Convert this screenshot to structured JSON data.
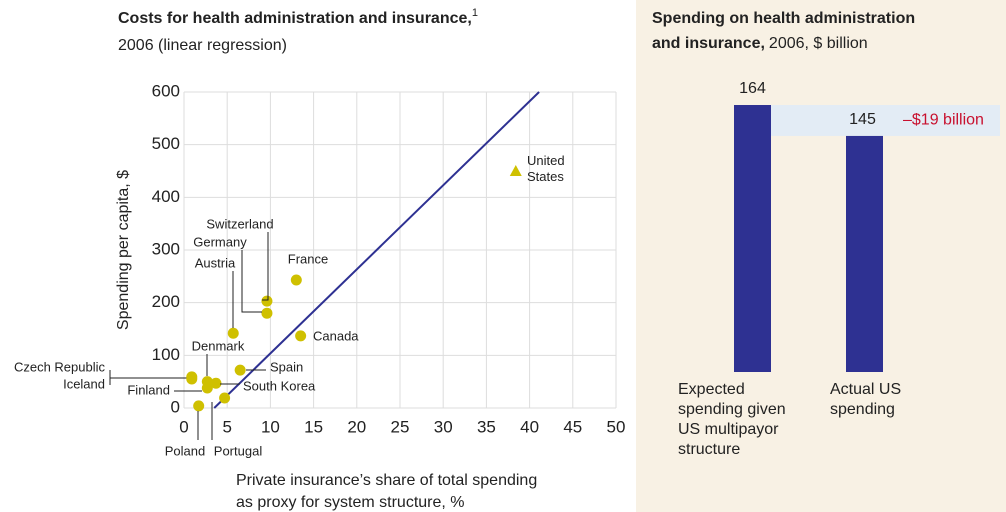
{
  "chart_data": [
    {
      "type": "scatter",
      "title": "Costs for health administration and insurance,",
      "title_note": "1",
      "subtitle": "2006 (linear regression)",
      "y_label": "Spending per capita, $",
      "x_label": [
        "Private insurance’s share of total spending",
        "as proxy for system structure, %"
      ],
      "xlim": [
        0,
        50
      ],
      "xticks": [
        0,
        5,
        10,
        15,
        20,
        25,
        30,
        35,
        40,
        45,
        50
      ],
      "ylim": [
        0,
        600
      ],
      "yticks": [
        0,
        100,
        200,
        300,
        400,
        500,
        600
      ],
      "color": "#cfc000",
      "line_color": "#2e3192",
      "regression_line": {
        "x": [
          3.5,
          41.1
        ],
        "y": [
          0,
          600
        ]
      },
      "points": [
        {
          "name": "United States",
          "x": 38.4,
          "y": 450,
          "marker": "triangle"
        },
        {
          "name": "Switzerland",
          "x": 9.6,
          "y": 203
        },
        {
          "name": "Germany",
          "x": 9.6,
          "y": 180
        },
        {
          "name": "Austria",
          "x": 5.7,
          "y": 142
        },
        {
          "name": "France",
          "x": 13.0,
          "y": 243
        },
        {
          "name": "Canada",
          "x": 13.5,
          "y": 137
        },
        {
          "name": "Denmark",
          "x": 2.7,
          "y": 50
        },
        {
          "name": "Czech Republic",
          "x": 0.9,
          "y": 59
        },
        {
          "name": "Iceland",
          "x": 0.9,
          "y": 55
        },
        {
          "name": "Finland",
          "x": 2.7,
          "y": 38
        },
        {
          "name": "Spain",
          "x": 6.5,
          "y": 72
        },
        {
          "name": "South Korea",
          "x": 3.7,
          "y": 47
        },
        {
          "name": "Poland",
          "x": 1.7,
          "y": 4
        },
        {
          "name": "Portugal",
          "x": 4.7,
          "y": 19
        }
      ]
    },
    {
      "type": "bar",
      "title": [
        "Spending on health administration",
        "and insurance,"
      ],
      "subtitle": "2006, $ billion",
      "categories": [
        "Expected spending given US multipayor structure",
        "Actual US spending"
      ],
      "values": [
        164,
        145
      ],
      "color": "#2e3192",
      "difference": {
        "value": -19,
        "label": "–$19 billion",
        "color": "#c8102e"
      }
    }
  ]
}
